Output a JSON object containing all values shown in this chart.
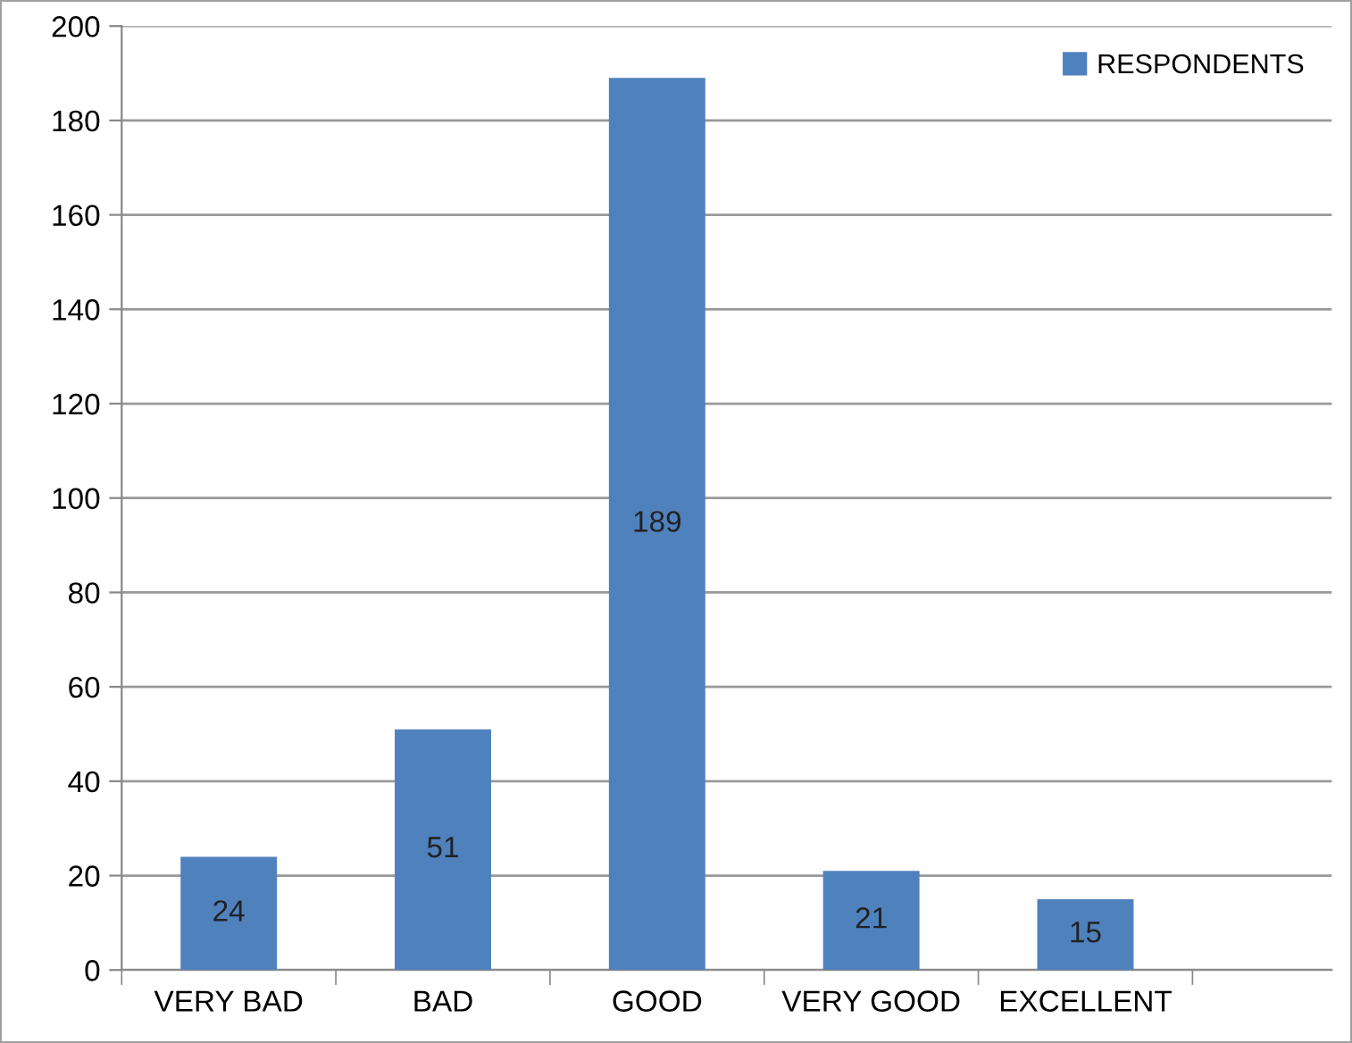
{
  "chart_data": {
    "type": "bar",
    "categories": [
      "VERY BAD",
      "BAD",
      "GOOD",
      "VERY GOOD",
      "EXCELLENT"
    ],
    "series": [
      {
        "name": "RESPONDENTS",
        "color": "#4f81bd",
        "values": [
          24,
          51,
          189,
          21,
          15
        ]
      }
    ],
    "ylim": [
      0,
      200
    ],
    "yticks": [
      0,
      20,
      40,
      60,
      80,
      100,
      120,
      140,
      160,
      180,
      200
    ],
    "grid": "y",
    "legend": "top right",
    "data_labels": true
  }
}
